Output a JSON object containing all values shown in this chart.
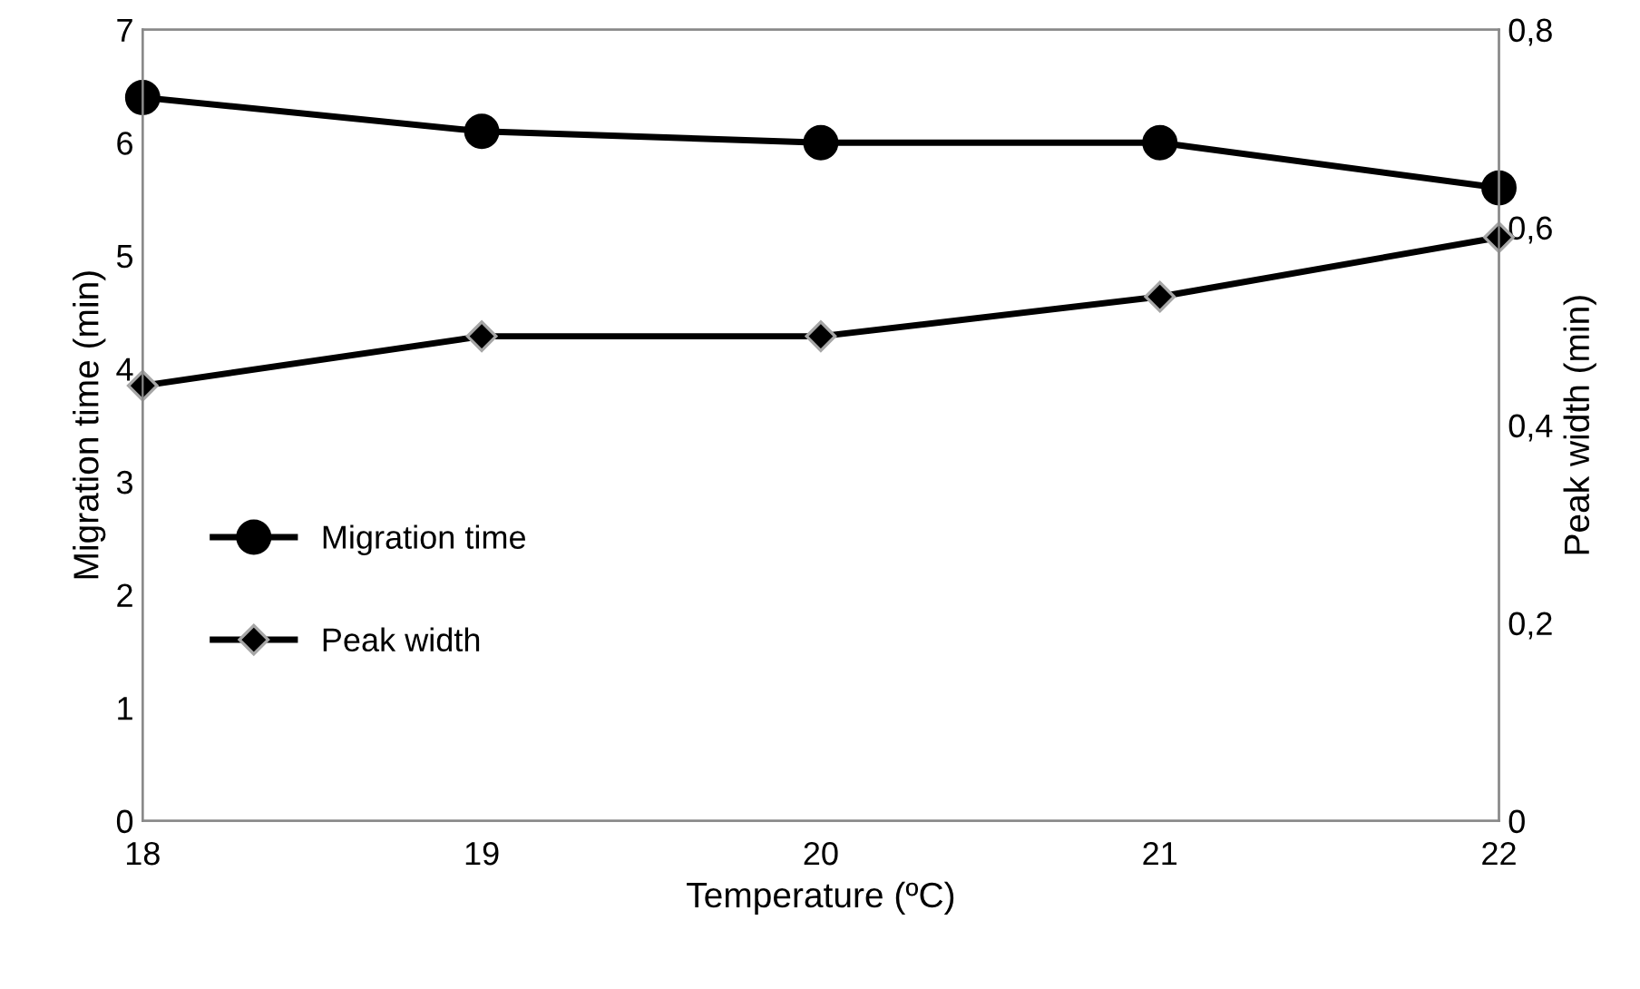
{
  "chart_data": {
    "type": "line",
    "xlabel": "Temperature (ºC)",
    "ylabel": "Migration time (min)",
    "y2label": "Peak width (min)",
    "x": [
      18,
      19,
      20,
      21,
      22
    ],
    "series": [
      {
        "name": "Migration time",
        "color": "#000000",
        "marker": "circle",
        "values": [
          6.4,
          6.1,
          6.0,
          6.0,
          5.6
        ]
      },
      {
        "name": "Peak width",
        "color": "#000000",
        "marker": "diamond",
        "axis": "y2",
        "values": [
          0.44,
          0.49,
          0.49,
          0.53,
          0.59
        ]
      }
    ],
    "xlim": [
      18,
      22
    ],
    "xticks": [
      18,
      19,
      20,
      21,
      22
    ],
    "ylim": [
      0,
      7
    ],
    "yticks": [
      0,
      1,
      2,
      3,
      4,
      5,
      6,
      7
    ],
    "y2lim": [
      0,
      0.8
    ],
    "y2ticks": [
      0,
      {
        "value": 0.2,
        "label": "0,2"
      },
      {
        "value": 0.4,
        "label": "0,4"
      },
      {
        "value": 0.6,
        "label": "0,6"
      },
      {
        "value": 0.8,
        "label": "0,8"
      }
    ],
    "grid": false,
    "legend": "left",
    "line_style": "solid"
  }
}
